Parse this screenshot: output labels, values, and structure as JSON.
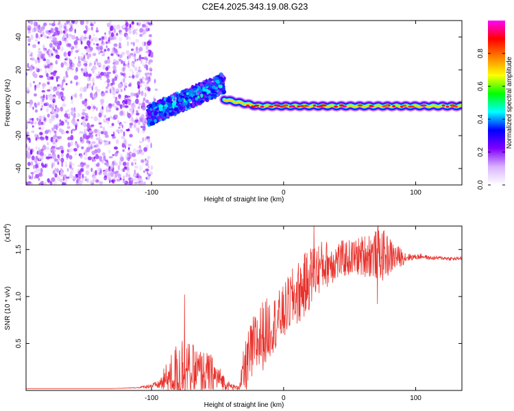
{
  "title": "C2E4.2025.343.19.08.G23",
  "chart_data": [
    {
      "type": "heatmap",
      "xlabel": "Height of straight line (km)",
      "ylabel": "Frequency (Hz)",
      "xlim": [
        -195,
        135
      ],
      "ylim": [
        -50,
        50
      ],
      "xticks": [
        -100,
        0,
        100
      ],
      "xtick_labels": [
        "-100",
        "0",
        "100"
      ],
      "yticks": [
        -40,
        -20,
        0,
        20,
        40
      ],
      "ytick_labels": [
        "-40",
        "-20",
        "0",
        "20",
        "40"
      ],
      "colorbar": {
        "label": "Normalized spectral amplitude",
        "range": [
          0,
          1
        ],
        "ticks": [
          0.0,
          0.2,
          0.4,
          0.6,
          0.8
        ],
        "tick_labels": [
          "0.0",
          "0.2",
          "0.4",
          "0.6",
          "0.8"
        ],
        "colormap": [
          "#ffffff",
          "#d9b3ff",
          "#8000ff",
          "#0000ff",
          "#00ffff",
          "#00ff00",
          "#ffff00",
          "#ff8000",
          "#ff0000",
          "#ff00ff"
        ]
      },
      "regions": [
        {
          "name": "noise",
          "x_range": [
            -195,
            -100
          ],
          "freq_range": [
            -50,
            50
          ],
          "amplitude": "low"
        },
        {
          "name": "rising-signal",
          "x_range": [
            -103,
            -45
          ],
          "freq_center": [
            -8,
            12
          ],
          "freq_width": 12,
          "amplitude": "medium"
        },
        {
          "name": "stable-signal",
          "x_range": [
            -45,
            135
          ],
          "freq_center": [
            2,
            -2
          ],
          "freq_width": 6,
          "amplitude": "high"
        }
      ]
    },
    {
      "type": "line",
      "xlabel": "Height of straight line (km)",
      "ylabel": "SNR (10 * v/v)",
      "y_multiplier": "(x10",
      "y_multiplier_exp": "4",
      "xlim": [
        -195,
        135
      ],
      "ylim": [
        0,
        1.75
      ],
      "xticks": [
        -100,
        0,
        100
      ],
      "xtick_labels": [
        "-100",
        "0",
        "100"
      ],
      "yticks": [
        0.5,
        1.0,
        1.5
      ],
      "ytick_labels": [
        "0.5",
        "1.0",
        "1.5"
      ],
      "line_color": "#e8302a",
      "series": [
        {
          "name": "SNR",
          "x": [
            -195,
            -170,
            -150,
            -130,
            -110,
            -95,
            -88,
            -82,
            -78,
            -72,
            -65,
            -55,
            -48,
            -42,
            -36,
            -33,
            -30,
            -25,
            -20,
            -15,
            -8,
            0,
            5,
            12,
            18,
            22,
            28,
            35,
            45,
            55,
            65,
            75,
            85,
            95,
            100,
            105,
            110,
            120,
            130,
            135
          ],
          "baseline": [
            0.02,
            0.02,
            0.02,
            0.02,
            0.03,
            0.06,
            0.12,
            0.18,
            0.22,
            0.22,
            0.2,
            0.17,
            0.12,
            0.05,
            0.03,
            0.05,
            0.2,
            0.38,
            0.52,
            0.6,
            0.7,
            0.82,
            0.95,
            1.05,
            1.15,
            1.25,
            1.32,
            1.36,
            1.4,
            1.42,
            1.45,
            1.44,
            1.42,
            1.42,
            1.42,
            1.43,
            1.41,
            1.41,
            1.4,
            1.41
          ],
          "noise_amplitude": [
            0.0,
            0.0,
            0.0,
            0.0,
            0.005,
            0.04,
            0.2,
            0.3,
            0.42,
            0.3,
            0.25,
            0.22,
            0.12,
            0.05,
            0.02,
            0.05,
            0.28,
            0.35,
            0.38,
            0.38,
            0.3,
            0.3,
            0.32,
            0.35,
            0.35,
            0.32,
            0.28,
            0.24,
            0.2,
            0.2,
            0.25,
            0.28,
            0.14,
            0.04,
            0.03,
            0.03,
            0.02,
            0.02,
            0.02,
            0.02
          ],
          "peaks": [
            {
              "x": -75,
              "y": 1.02
            },
            {
              "x": 23,
              "y": 1.76
            },
            {
              "x": 71,
              "y": 0.92
            },
            {
              "x": 71.5,
              "y": 1.78
            }
          ]
        }
      ]
    }
  ]
}
